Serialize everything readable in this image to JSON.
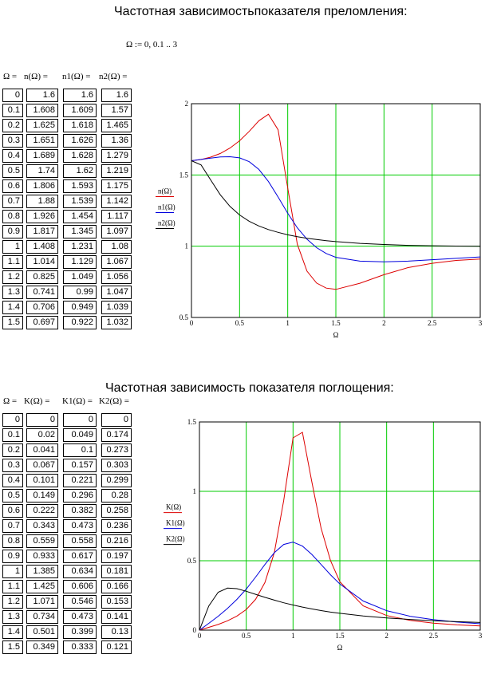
{
  "section1": {
    "title": "Частотная зависимостьпоказателя преломления:",
    "range_def": "Ω := 0, 0.1 .. 3",
    "headers": [
      "Ω =",
      "n(Ω) =",
      "n1(Ω) =",
      "n2(Ω) ="
    ],
    "table": {
      "omega": [
        "0",
        "0.1",
        "0.2",
        "0.3",
        "0.4",
        "0.5",
        "0.6",
        "0.7",
        "0.8",
        "0.9",
        "1",
        "1.1",
        "1.2",
        "1.3",
        "1.4",
        "1.5"
      ],
      "n": [
        "1.6",
        "1.608",
        "1.625",
        "1.651",
        "1.689",
        "1.74",
        "1.806",
        "1.88",
        "1.926",
        "1.817",
        "1.408",
        "1.014",
        "0.825",
        "0.741",
        "0.706",
        "0.697"
      ],
      "n1": [
        "1.6",
        "1.609",
        "1.618",
        "1.626",
        "1.628",
        "1.62",
        "1.593",
        "1.539",
        "1.454",
        "1.345",
        "1.231",
        "1.129",
        "1.049",
        "0.99",
        "0.949",
        "0.922"
      ],
      "n2": [
        "1.6",
        "1.57",
        "1.465",
        "1.36",
        "1.279",
        "1.219",
        "1.175",
        "1.142",
        "1.117",
        "1.097",
        "1.08",
        "1.067",
        "1.056",
        "1.047",
        "1.039",
        "1.032"
      ]
    }
  },
  "section2": {
    "title": "Частотная зависимость показателя поглощения:",
    "headers": [
      "Ω =",
      "K(Ω) =",
      "K1(Ω) =",
      "K2(Ω) ="
    ],
    "table": {
      "omega": [
        "0",
        "0.1",
        "0.2",
        "0.3",
        "0.4",
        "0.5",
        "0.6",
        "0.7",
        "0.8",
        "0.9",
        "1",
        "1.1",
        "1.2",
        "1.3",
        "1.4",
        "1.5"
      ],
      "K": [
        "0",
        "0.02",
        "0.041",
        "0.067",
        "0.101",
        "0.149",
        "0.222",
        "0.343",
        "0.559",
        "0.933",
        "1.385",
        "1.425",
        "1.071",
        "0.734",
        "0.501",
        "0.349"
      ],
      "K1": [
        "0",
        "0.049",
        "0.1",
        "0.157",
        "0.221",
        "0.296",
        "0.382",
        "0.473",
        "0.558",
        "0.617",
        "0.634",
        "0.606",
        "0.546",
        "0.473",
        "0.399",
        "0.333"
      ],
      "K2": [
        "0",
        "0.174",
        "0.273",
        "0.303",
        "0.299",
        "0.28",
        "0.258",
        "0.236",
        "0.216",
        "0.197",
        "0.181",
        "0.166",
        "0.153",
        "0.141",
        "0.13",
        "0.121"
      ]
    }
  },
  "colors": {
    "grid": "#00cc00",
    "red": "#dd0000",
    "blue": "#0000dd",
    "black": "#000000"
  },
  "chart_data": [
    {
      "type": "line",
      "xlabel": "Ω",
      "legend": [
        "n(Ω)",
        "n1(Ω)",
        "n2(Ω)"
      ],
      "xlim": [
        0,
        3
      ],
      "ylim": [
        0.5,
        2
      ],
      "xticks": [
        "0",
        "0.5",
        "1",
        "1.5",
        "2",
        "2.5",
        "3"
      ],
      "yticks": [
        "0.5",
        "1",
        "1.5",
        "2"
      ],
      "grid": true,
      "x": [
        0,
        0.1,
        0.2,
        0.3,
        0.4,
        0.5,
        0.6,
        0.7,
        0.8,
        0.9,
        1.0,
        1.1,
        1.2,
        1.3,
        1.4,
        1.5,
        1.75,
        2.0,
        2.25,
        2.5,
        2.75,
        3.0
      ],
      "series": [
        {
          "name": "n(Ω)",
          "color": "red",
          "values": [
            1.6,
            1.608,
            1.625,
            1.651,
            1.689,
            1.74,
            1.806,
            1.88,
            1.926,
            1.817,
            1.408,
            1.014,
            0.825,
            0.741,
            0.706,
            0.697,
            0.74,
            0.8,
            0.85,
            0.88,
            0.9,
            0.91
          ]
        },
        {
          "name": "n1(Ω)",
          "color": "blue",
          "values": [
            1.6,
            1.609,
            1.618,
            1.626,
            1.628,
            1.62,
            1.593,
            1.539,
            1.454,
            1.345,
            1.231,
            1.129,
            1.049,
            0.99,
            0.949,
            0.922,
            0.895,
            0.89,
            0.895,
            0.905,
            0.915,
            0.925
          ]
        },
        {
          "name": "n2(Ω)",
          "color": "black",
          "values": [
            1.6,
            1.57,
            1.465,
            1.36,
            1.279,
            1.219,
            1.175,
            1.142,
            1.117,
            1.097,
            1.08,
            1.067,
            1.056,
            1.047,
            1.039,
            1.032,
            1.02,
            1.012,
            1.006,
            1.003,
            1.001,
            1.0
          ]
        }
      ]
    },
    {
      "type": "line",
      "xlabel": "Ω",
      "legend": [
        "K(Ω)",
        "K1(Ω)",
        "K2(Ω)"
      ],
      "xlim": [
        0,
        3
      ],
      "ylim": [
        0,
        1.5
      ],
      "xticks": [
        "0",
        "0.5",
        "1",
        "1.5",
        "2",
        "2.5",
        "3"
      ],
      "yticks": [
        "0",
        "0.5",
        "1",
        "1.5"
      ],
      "grid": true,
      "x": [
        0,
        0.1,
        0.2,
        0.3,
        0.4,
        0.5,
        0.6,
        0.7,
        0.8,
        0.9,
        1.0,
        1.1,
        1.2,
        1.3,
        1.4,
        1.5,
        1.75,
        2.0,
        2.25,
        2.5,
        2.75,
        3.0
      ],
      "series": [
        {
          "name": "K(Ω)",
          "color": "red",
          "values": [
            0,
            0.02,
            0.041,
            0.067,
            0.101,
            0.149,
            0.222,
            0.343,
            0.559,
            0.933,
            1.385,
            1.425,
            1.071,
            0.734,
            0.501,
            0.349,
            0.175,
            0.105,
            0.07,
            0.05,
            0.038,
            0.03
          ]
        },
        {
          "name": "K1(Ω)",
          "color": "blue",
          "values": [
            0,
            0.049,
            0.1,
            0.157,
            0.221,
            0.296,
            0.382,
            0.473,
            0.558,
            0.617,
            0.634,
            0.606,
            0.546,
            0.473,
            0.399,
            0.333,
            0.21,
            0.14,
            0.1,
            0.075,
            0.058,
            0.046
          ]
        },
        {
          "name": "K2(Ω)",
          "color": "black",
          "values": [
            0,
            0.174,
            0.273,
            0.303,
            0.299,
            0.28,
            0.258,
            0.236,
            0.216,
            0.197,
            0.181,
            0.166,
            0.153,
            0.141,
            0.13,
            0.121,
            0.102,
            0.088,
            0.077,
            0.068,
            0.061,
            0.055
          ]
        }
      ]
    }
  ]
}
